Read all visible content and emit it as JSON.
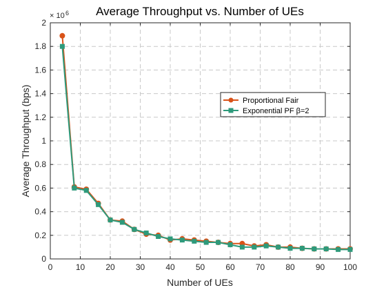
{
  "chart_data": {
    "type": "line",
    "title": "Average Throughput vs. Number of UEs",
    "xlabel": "Number of UEs",
    "ylabel": "Average Throughput (bps)",
    "y_exponent_base": "× 10",
    "y_exponent_power": "6",
    "xlim": [
      0,
      100
    ],
    "ylim": [
      0,
      2
    ],
    "x_ticks": [
      0,
      10,
      20,
      30,
      40,
      50,
      60,
      70,
      80,
      90,
      100
    ],
    "y_ticks": [
      0,
      0.2,
      0.4,
      0.6,
      0.8,
      1,
      1.2,
      1.4,
      1.6,
      1.8,
      2
    ],
    "x_tick_labels": [
      "0",
      "10",
      "20",
      "30",
      "40",
      "50",
      "60",
      "70",
      "80",
      "90",
      "100"
    ],
    "y_tick_labels": [
      "0",
      "0.2",
      "0.4",
      "0.6",
      "0.8",
      "1",
      "1.2",
      "1.4",
      "1.6",
      "1.8",
      "2"
    ],
    "grid": true,
    "legend_position": "top-right",
    "x": [
      4,
      8,
      12,
      16,
      20,
      24,
      28,
      32,
      36,
      40,
      44,
      48,
      52,
      56,
      60,
      64,
      68,
      72,
      76,
      80,
      84,
      88,
      92,
      96,
      100
    ],
    "series": [
      {
        "name": "Proportional Fair",
        "color": "#D95319",
        "marker": "circle",
        "values": [
          1.89,
          0.61,
          0.59,
          0.47,
          0.33,
          0.32,
          0.25,
          0.21,
          0.2,
          0.16,
          0.17,
          0.16,
          0.15,
          0.14,
          0.13,
          0.13,
          0.11,
          0.12,
          0.1,
          0.1,
          0.09,
          0.085,
          0.085,
          0.085,
          0.085
        ]
      },
      {
        "name": "Exponential PF β=2",
        "color": "#2E9A7B",
        "marker": "square",
        "values": [
          1.8,
          0.6,
          0.58,
          0.46,
          0.33,
          0.31,
          0.25,
          0.22,
          0.19,
          0.17,
          0.16,
          0.15,
          0.14,
          0.14,
          0.12,
          0.1,
          0.1,
          0.11,
          0.1,
          0.09,
          0.09,
          0.085,
          0.085,
          0.08,
          0.08
        ]
      }
    ]
  }
}
